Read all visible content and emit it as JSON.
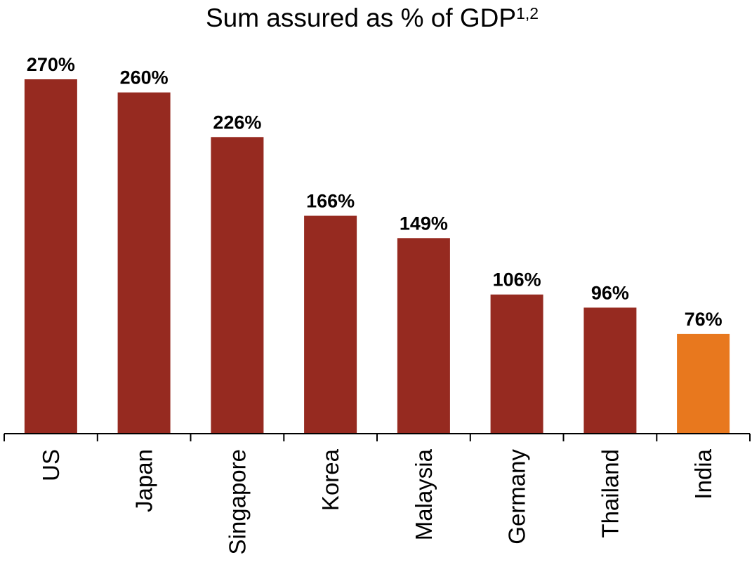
{
  "chart_data": {
    "type": "bar",
    "title": "Sum assured as % of GDP",
    "title_superscript": "1,2",
    "categories": [
      "US",
      "Japan",
      "Singapore",
      "Korea",
      "Malaysia",
      "Germany",
      "Thailand",
      "India"
    ],
    "values": [
      270,
      260,
      226,
      166,
      149,
      106,
      96,
      76
    ],
    "value_labels": [
      "270%",
      "260%",
      "226%",
      "166%",
      "149%",
      "106%",
      "96%",
      "76%"
    ],
    "bar_colors": [
      "#962a20",
      "#962a20",
      "#962a20",
      "#962a20",
      "#962a20",
      "#962a20",
      "#962a20",
      "#e8781e"
    ],
    "xlabel": "",
    "ylabel": "",
    "ylim": [
      0,
      270
    ],
    "y_axis_visible": false,
    "grid": false,
    "legend": "none"
  },
  "colors": {
    "default_bar": "#962a20",
    "highlight_bar": "#e8781e",
    "axis": "#000000",
    "text": "#000000"
  }
}
